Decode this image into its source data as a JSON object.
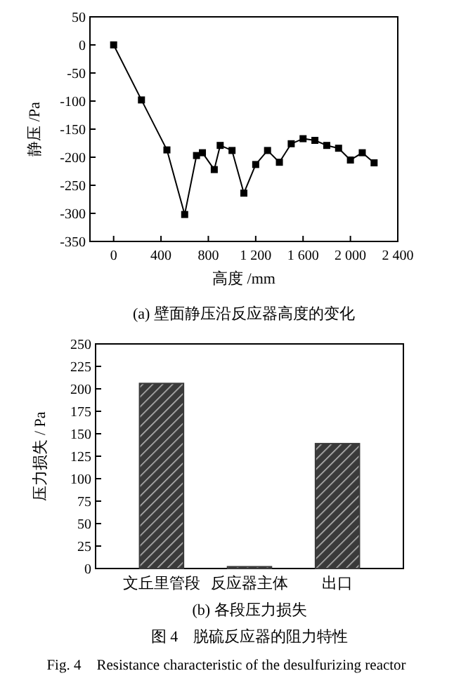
{
  "chart_data": [
    {
      "type": "line",
      "title": "(a) 壁面静压沿反应器高度的变化",
      "xlabel": "高度 /mm",
      "ylabel": "静压 /Pa",
      "x": [
        0,
        235,
        450,
        600,
        700,
        750,
        850,
        900,
        1000,
        1100,
        1200,
        1300,
        1400,
        1500,
        1600,
        1700,
        1800,
        1900,
        2000,
        2100,
        2200
      ],
      "series": [
        {
          "color": "#000000",
          "values": [
            0,
            -98,
            -187,
            -302,
            -197,
            -192,
            -222,
            -179,
            -188,
            -264,
            -213,
            -188,
            -209,
            -176,
            -167,
            -170,
            -179,
            -184,
            -205,
            -192,
            -210
          ]
        }
      ],
      "xlim": [
        -200,
        2400
      ],
      "xticks": [
        0,
        400,
        800,
        {
          "value": 1200,
          "label": "1 200"
        },
        {
          "value": 1600,
          "label": "1 600"
        },
        {
          "value": 2000,
          "label": "2 000"
        },
        {
          "value": 2400,
          "label": "2 400"
        }
      ],
      "ylim": [
        -350,
        50
      ],
      "yticks": [
        -350,
        -300,
        -250,
        -200,
        -150,
        -100,
        -50,
        0,
        50
      ],
      "marker": "square",
      "line_style": "solid"
    },
    {
      "type": "bar",
      "title": "(b) 各段压力损失",
      "ylabel": "压力损失 / Pa",
      "categories": [
        "文丘里管段",
        "反应器主体",
        "出口"
      ],
      "values": [
        206,
        2,
        139
      ],
      "color": "#3a3a3a",
      "ylim": [
        0,
        250
      ],
      "yticks": [
        0,
        25,
        50,
        75,
        100,
        125,
        150,
        175,
        200,
        225,
        250
      ],
      "annotations": [
        "图 4　脱硫反应器的阻力特性",
        "Fig. 4　Resistance characteristic of the desulfurizing reactor"
      ]
    }
  ]
}
